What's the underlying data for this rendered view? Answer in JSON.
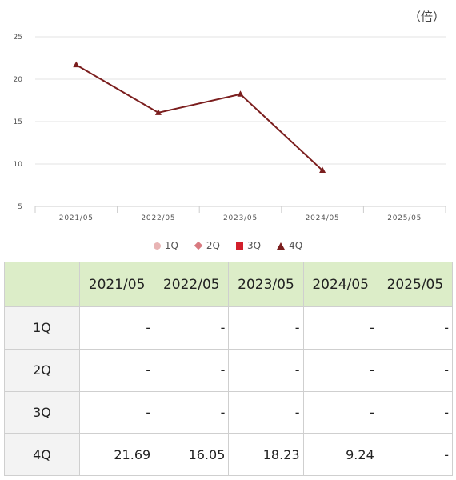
{
  "unit_label": "（倍）",
  "legend": [
    {
      "label": "1Q",
      "color": "#e8b4b4",
      "shape": "circle"
    },
    {
      "label": "2Q",
      "color": "#d97a80",
      "shape": "diamond"
    },
    {
      "label": "3Q",
      "color": "#d21f2b",
      "shape": "square"
    },
    {
      "label": "4Q",
      "color": "#7b1e1e",
      "shape": "triangle"
    }
  ],
  "chart_data": {
    "type": "line",
    "categories": [
      "2021/05",
      "2022/05",
      "2023/05",
      "2024/05",
      "2025/05"
    ],
    "yticks": [
      5,
      10,
      15,
      20,
      25
    ],
    "ylim": [
      5,
      25
    ],
    "grid": true,
    "legend_position": "bottom",
    "series": [
      {
        "name": "1Q",
        "color": "#e8b4b4",
        "values": [
          null,
          null,
          null,
          null,
          null
        ]
      },
      {
        "name": "2Q",
        "color": "#d97a80",
        "values": [
          null,
          null,
          null,
          null,
          null
        ]
      },
      {
        "name": "3Q",
        "color": "#d21f2b",
        "values": [
          null,
          null,
          null,
          null,
          null
        ]
      },
      {
        "name": "4Q",
        "color": "#7b1e1e",
        "values": [
          21.69,
          16.05,
          18.23,
          9.24,
          null
        ]
      }
    ]
  },
  "table": {
    "corner": "",
    "headers": [
      "2021/05",
      "2022/05",
      "2023/05",
      "2024/05",
      "2025/05"
    ],
    "rows": [
      {
        "label": "1Q",
        "cells": [
          "-",
          "-",
          "-",
          "-",
          "-"
        ]
      },
      {
        "label": "2Q",
        "cells": [
          "-",
          "-",
          "-",
          "-",
          "-"
        ]
      },
      {
        "label": "3Q",
        "cells": [
          "-",
          "-",
          "-",
          "-",
          "-"
        ]
      },
      {
        "label": "4Q",
        "cells": [
          "21.69",
          "16.05",
          "18.23",
          "9.24",
          "-"
        ]
      }
    ]
  }
}
